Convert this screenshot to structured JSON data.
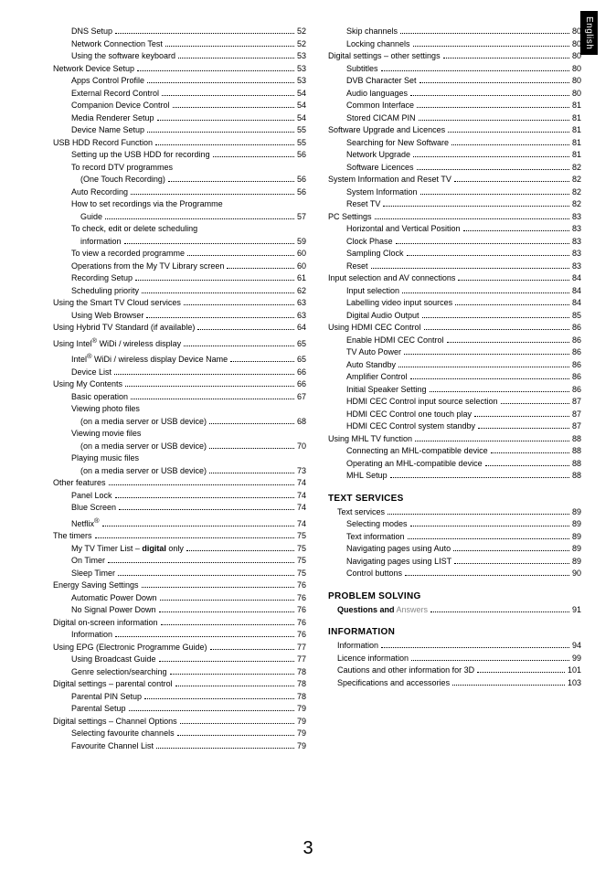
{
  "sideTab": "English",
  "pageNumber": "3",
  "headings": {
    "text_services": "TEXT SERVICES",
    "problem_solving": "PROBLEM SOLVING",
    "information": "INFORMATION"
  },
  "left": [
    {
      "indent": 2,
      "label": "DNS Setup",
      "page": "52"
    },
    {
      "indent": 2,
      "label": "Network Connection Test",
      "page": "52"
    },
    {
      "indent": 2,
      "label": "Using the software keyboard",
      "page": "53"
    },
    {
      "indent": 0,
      "label": "Network Device Setup",
      "page": "53"
    },
    {
      "indent": 2,
      "label": "Apps Control Profile",
      "page": "53"
    },
    {
      "indent": 2,
      "label": "External Record Control",
      "page": "54"
    },
    {
      "indent": 2,
      "label": "Companion Device Control",
      "page": "54"
    },
    {
      "indent": 2,
      "label": "Media Renderer Setup",
      "page": "54"
    },
    {
      "indent": 2,
      "label": "Device Name Setup",
      "page": "55"
    },
    {
      "indent": 0,
      "label": "USB HDD Record Function",
      "page": "55"
    },
    {
      "indent": 2,
      "label": "Setting up the USB HDD for recording",
      "page": "56"
    },
    {
      "indent": 2,
      "label": "To record DTV programmes",
      "cont": true
    },
    {
      "indent": 3,
      "label": "(One Touch Recording)",
      "page": "56"
    },
    {
      "indent": 2,
      "label": "Auto Recording",
      "page": "56"
    },
    {
      "indent": 2,
      "label": "How to set recordings via the Programme",
      "cont": true
    },
    {
      "indent": 3,
      "label": "Guide",
      "page": "57"
    },
    {
      "indent": 2,
      "label": "To check, edit or delete scheduling",
      "cont": true
    },
    {
      "indent": 3,
      "label": "information",
      "page": "59"
    },
    {
      "indent": 2,
      "label": "To view a recorded programme",
      "page": "60"
    },
    {
      "indent": 2,
      "label": "Operations from the My TV Library screen",
      "page": "60"
    },
    {
      "indent": 2,
      "label": "Recording Setup",
      "page": "61"
    },
    {
      "indent": 2,
      "label": "Scheduling priority",
      "page": "62"
    },
    {
      "indent": 0,
      "label": "Using the Smart TV Cloud services",
      "page": "63"
    },
    {
      "indent": 2,
      "label": "Using Web Browser",
      "page": "63"
    },
    {
      "indent": 0,
      "label": "Using Hybrid TV Standard (if available)",
      "page": "64"
    },
    {
      "indent": 0,
      "html": "Using Intel<sup>®</sup> WiDi / wireless display",
      "page": "65"
    },
    {
      "indent": 2,
      "html": "Intel<sup>®</sup> WiDi / wireless display Device Name",
      "page": "65"
    },
    {
      "indent": 2,
      "label": "Device List",
      "page": "66"
    },
    {
      "indent": 0,
      "label": "Using My Contents",
      "page": "66"
    },
    {
      "indent": 2,
      "label": "Basic operation",
      "page": "67"
    },
    {
      "indent": 2,
      "label": "Viewing photo files",
      "cont": true
    },
    {
      "indent": 3,
      "label": "(on a media server or USB device)",
      "page": "68"
    },
    {
      "indent": 2,
      "label": "Viewing movie files",
      "cont": true
    },
    {
      "indent": 3,
      "label": "(on a media server or USB device)",
      "page": "70"
    },
    {
      "indent": 2,
      "label": "Playing music files",
      "cont": true
    },
    {
      "indent": 3,
      "label": "(on a media server or USB device)",
      "page": "73"
    },
    {
      "indent": 0,
      "label": "Other features",
      "page": "74"
    },
    {
      "indent": 2,
      "label": "Panel Lock",
      "page": "74"
    },
    {
      "indent": 2,
      "label": "Blue Screen",
      "page": "74"
    },
    {
      "indent": 2,
      "html": "Netflix<sup>®</sup>",
      "page": "74"
    },
    {
      "indent": 0,
      "label": "The timers",
      "page": "75"
    },
    {
      "indent": 2,
      "html": "My TV Timer List – <b>digital</b> only",
      "page": "75"
    },
    {
      "indent": 2,
      "label": "On Timer",
      "page": "75"
    },
    {
      "indent": 2,
      "label": "Sleep Timer",
      "page": "75"
    },
    {
      "indent": 0,
      "label": "Energy Saving Settings",
      "page": "76"
    },
    {
      "indent": 2,
      "label": "Automatic Power Down",
      "page": "76"
    },
    {
      "indent": 2,
      "label": "No Signal Power Down",
      "page": "76"
    },
    {
      "indent": 0,
      "label": "Digital on-screen information",
      "page": "76"
    },
    {
      "indent": 2,
      "label": "Information",
      "page": "76"
    },
    {
      "indent": 0,
      "label": "Using EPG (Electronic Programme Guide)",
      "page": "77"
    },
    {
      "indent": 2,
      "label": "Using Broadcast Guide",
      "page": "77"
    },
    {
      "indent": 2,
      "label": "Genre selection/searching",
      "page": "78"
    },
    {
      "indent": 0,
      "label": "Digital settings – parental control",
      "page": "78"
    },
    {
      "indent": 2,
      "label": "Parental PIN Setup",
      "page": "78"
    },
    {
      "indent": 2,
      "label": "Parental Setup",
      "page": "79"
    },
    {
      "indent": 0,
      "label": "Digital settings – Channel Options",
      "page": "79"
    },
    {
      "indent": 2,
      "label": "Selecting favourite channels",
      "page": "79"
    },
    {
      "indent": 2,
      "label": "Favourite Channel List",
      "page": "79"
    }
  ],
  "rightTop": [
    {
      "indent": 2,
      "label": "Skip channels",
      "page": "80"
    },
    {
      "indent": 2,
      "label": "Locking channels",
      "page": "80"
    },
    {
      "indent": 0,
      "label": "Digital settings – other settings",
      "page": "80"
    },
    {
      "indent": 2,
      "label": "Subtitles",
      "page": "80"
    },
    {
      "indent": 2,
      "label": "DVB Character Set",
      "page": "80"
    },
    {
      "indent": 2,
      "label": "Audio languages",
      "page": "80"
    },
    {
      "indent": 2,
      "label": "Common Interface",
      "page": "81"
    },
    {
      "indent": 2,
      "label": "Stored CICAM PIN",
      "page": "81"
    },
    {
      "indent": 0,
      "label": "Software Upgrade and Licences",
      "page": "81"
    },
    {
      "indent": 2,
      "label": "Searching for New Software",
      "page": "81"
    },
    {
      "indent": 2,
      "label": "Network Upgrade",
      "page": "81"
    },
    {
      "indent": 2,
      "label": "Software Licences",
      "page": "82"
    },
    {
      "indent": 0,
      "label": "System Information and Reset TV",
      "page": "82"
    },
    {
      "indent": 2,
      "label": "System Information",
      "page": "82"
    },
    {
      "indent": 2,
      "label": "Reset TV",
      "page": "82"
    },
    {
      "indent": 0,
      "label": "PC Settings",
      "page": "83"
    },
    {
      "indent": 2,
      "label": "Horizontal and Vertical Position",
      "page": "83"
    },
    {
      "indent": 2,
      "label": "Clock Phase",
      "page": "83"
    },
    {
      "indent": 2,
      "label": "Sampling Clock",
      "page": "83"
    },
    {
      "indent": 2,
      "label": "Reset",
      "page": "83"
    },
    {
      "indent": 0,
      "label": "Input selection and AV connections",
      "page": "84"
    },
    {
      "indent": 2,
      "label": "Input selection",
      "page": "84"
    },
    {
      "indent": 2,
      "label": "Labelling video input sources",
      "page": "84"
    },
    {
      "indent": 2,
      "label": "Digital Audio Output",
      "page": "85"
    },
    {
      "indent": 0,
      "label": "Using HDMI CEC Control",
      "page": "86"
    },
    {
      "indent": 2,
      "label": "Enable HDMI CEC Control",
      "page": "86"
    },
    {
      "indent": 2,
      "label": "TV Auto Power",
      "page": "86"
    },
    {
      "indent": 2,
      "label": "Auto Standby",
      "page": "86"
    },
    {
      "indent": 2,
      "label": "Amplifier Control",
      "page": "86"
    },
    {
      "indent": 2,
      "label": "Initial Speaker Setting",
      "page": "86"
    },
    {
      "indent": 2,
      "label": "HDMI CEC Control input source selection",
      "page": "87"
    },
    {
      "indent": 2,
      "label": "HDMI CEC Control one touch play",
      "page": "87"
    },
    {
      "indent": 2,
      "label": "HDMI CEC Control system standby",
      "page": "87"
    },
    {
      "indent": 0,
      "label": "Using MHL TV function",
      "page": "88"
    },
    {
      "indent": 2,
      "label": "Connecting an MHL-compatible device",
      "page": "88"
    },
    {
      "indent": 2,
      "label": "Operating an MHL-compatible device",
      "page": "88"
    },
    {
      "indent": 2,
      "label": "MHL Setup",
      "page": "88"
    }
  ],
  "textServices": [
    {
      "indent": 1,
      "label": "Text services",
      "page": "89"
    },
    {
      "indent": 2,
      "label": "Selecting modes",
      "page": "89"
    },
    {
      "indent": 2,
      "label": "Text information",
      "page": "89"
    },
    {
      "indent": 2,
      "label": "Navigating pages using Auto",
      "page": "89"
    },
    {
      "indent": 2,
      "label": "Navigating pages using LIST",
      "page": "89"
    },
    {
      "indent": 2,
      "label": "Control buttons",
      "page": "90"
    }
  ],
  "problemSolving": [
    {
      "indent": 1,
      "html": "<b>Questions and</b> <span class='grey'>Answers</span>",
      "page": "91"
    }
  ],
  "information": [
    {
      "indent": 1,
      "label": "Information",
      "page": "94"
    },
    {
      "indent": 1,
      "label": "Licence information",
      "page": "99"
    },
    {
      "indent": 1,
      "label": "Cautions and other information for 3D",
      "page": "101"
    },
    {
      "indent": 1,
      "label": "Specifications and accessories",
      "page": "103"
    }
  ]
}
